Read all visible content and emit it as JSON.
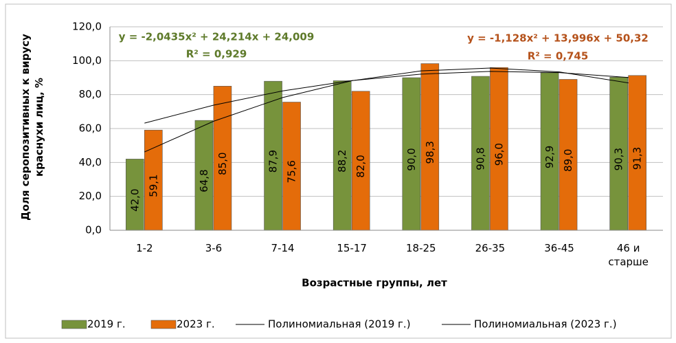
{
  "chart_data": {
    "type": "bar",
    "ylabel": "Доля серопозитивных к вирусу краснухи лиц, %",
    "xlabel": "Возрастные группы, лет",
    "categories": [
      "1-2",
      "3-6",
      "7-14",
      "15-17",
      "18-25",
      "26-35",
      "36-45",
      "46 и старше"
    ],
    "series": [
      {
        "name": "2019 г.",
        "color": "#77933c",
        "values": [
          42.0,
          64.8,
          87.9,
          88.2,
          90.0,
          90.8,
          92.9,
          90.3
        ],
        "value_labels": [
          "42,0",
          "64,8",
          "87,9",
          "88,2",
          "90,0",
          "90,8",
          "92,9",
          "90,3"
        ]
      },
      {
        "name": "2023 г.",
        "color": "#e46c0a",
        "values": [
          59.1,
          85.0,
          75.6,
          82.0,
          98.3,
          96.0,
          89.0,
          91.3
        ],
        "value_labels": [
          "59,1",
          "85,0",
          "75,6",
          "82,0",
          "98,3",
          "96,0",
          "89,0",
          "91,3"
        ]
      },
      {
        "name": "Полиномиальная (2019 г.)",
        "type": "line",
        "color": "#000000",
        "values": [
          46.2,
          64.3,
          78.3,
          88.2,
          94.0,
          95.7,
          93.4,
          86.9
        ]
      },
      {
        "name": "Полиномиальная (2023 г.)",
        "type": "line",
        "color": "#000000",
        "values": [
          63.2,
          73.8,
          82.2,
          88.3,
          92.1,
          93.7,
          93.0,
          90.1
        ]
      }
    ],
    "annotations": [
      {
        "text": "y = -2,0435x² + 24,214x + 24,009",
        "color": "#5e7a2a"
      },
      {
        "text": "R² = 0,929",
        "color": "#5e7a2a"
      },
      {
        "text": "y = -1,128x² + 13,996x + 50,32",
        "color": "#b5521b"
      },
      {
        "text": "R² = 0,745",
        "color": "#b5521b"
      }
    ],
    "ylim": [
      0,
      120
    ],
    "yticks": [
      {
        "value": 0,
        "label": "0,0"
      },
      {
        "value": 20,
        "label": "20,0"
      },
      {
        "value": 40,
        "label": "40,0"
      },
      {
        "value": 60,
        "label": "60,0"
      },
      {
        "value": 80,
        "label": "80,0"
      },
      {
        "value": 100,
        "label": "100,0"
      },
      {
        "value": 120,
        "label": "120,0"
      }
    ],
    "grid": true,
    "legend": "bottom"
  }
}
